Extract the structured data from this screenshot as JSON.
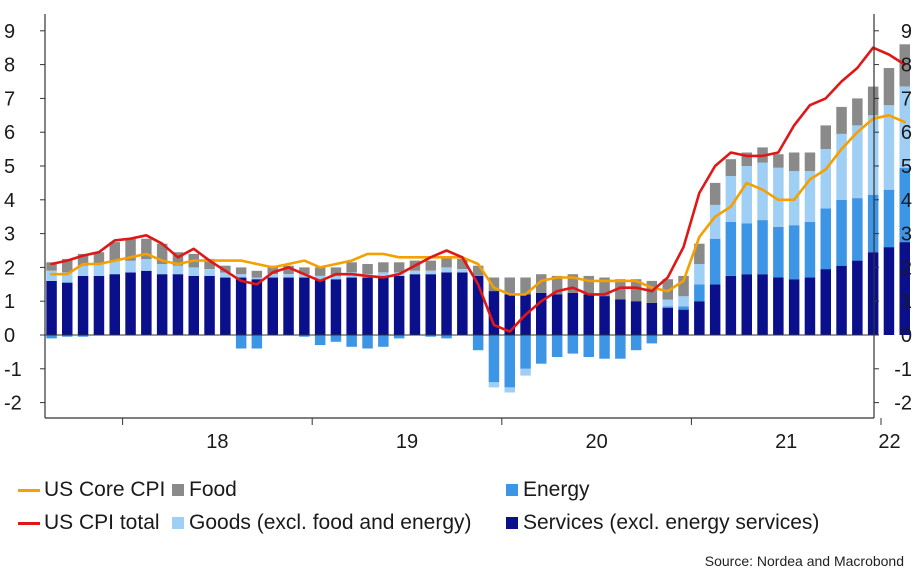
{
  "chart_data": {
    "type": "bar",
    "title": "",
    "xlabel": "",
    "ylabel": "",
    "ylim": [
      -2.5,
      9.5
    ],
    "yticks": [
      "-2",
      "-1",
      "0",
      "1",
      "2",
      "3",
      "4",
      "5",
      "6",
      "7",
      "8",
      "9"
    ],
    "ytick_values": [
      -2,
      -1,
      0,
      1,
      2,
      3,
      4,
      5,
      6,
      7,
      8,
      9
    ],
    "x_year_labels": [
      "18",
      "19",
      "20",
      "21",
      "22"
    ],
    "colors": {
      "services": "#0a0f8c",
      "energy": "#3d95e6",
      "goods": "#9fcff5",
      "food": "#8a8a8a",
      "core": "#f5a000",
      "total": "#e01717"
    },
    "stack_series": [
      {
        "name": "Services (excl. energy services)",
        "key": "services",
        "values": [
          1.6,
          1.55,
          1.75,
          1.75,
          1.8,
          1.85,
          1.9,
          1.8,
          1.8,
          1.75,
          1.75,
          1.7,
          1.7,
          1.65,
          1.7,
          1.7,
          1.7,
          1.65,
          1.65,
          1.7,
          1.7,
          1.75,
          1.75,
          1.8,
          1.8,
          1.85,
          1.85,
          1.75,
          1.3,
          1.2,
          1.2,
          1.25,
          1.2,
          1.25,
          1.2,
          1.15,
          1.05,
          1.0,
          0.95,
          0.8,
          0.75,
          1.0,
          1.5,
          1.75,
          1.8,
          1.8,
          1.7,
          1.65,
          1.7,
          1.95,
          2.05,
          2.2,
          2.45,
          2.6,
          2.75
        ]
      },
      {
        "name": "Energy",
        "key": "energy",
        "values": [
          -0.1,
          -0.05,
          -0.05,
          0,
          0,
          0,
          0,
          0,
          0,
          0,
          0,
          0,
          -0.4,
          -0.4,
          0,
          0,
          -0.05,
          -0.3,
          -0.2,
          -0.35,
          -0.4,
          -0.35,
          -0.1,
          0,
          -0.05,
          -0.1,
          0,
          -0.45,
          -1.4,
          -1.55,
          -1.0,
          -0.85,
          -0.65,
          -0.55,
          -0.65,
          -0.7,
          -0.7,
          -0.45,
          -0.25,
          0.05,
          0.1,
          0.5,
          1.35,
          1.6,
          1.5,
          1.6,
          1.5,
          1.6,
          1.65,
          1.8,
          1.95,
          1.85,
          1.7,
          1.7,
          2.2
        ]
      },
      {
        "name": "Goods (excl. food and energy)",
        "key": "goods",
        "values": [
          0.3,
          0.3,
          0.3,
          0.35,
          0.4,
          0.35,
          0.35,
          0.3,
          0.25,
          0.25,
          0.2,
          0.15,
          0.1,
          0.05,
          0.1,
          0.1,
          0.1,
          0.1,
          0.1,
          0.15,
          0.1,
          0.1,
          0.1,
          0.1,
          0.1,
          0.15,
          0.1,
          0.0,
          -0.15,
          -0.15,
          -0.2,
          0.0,
          0.0,
          0.0,
          0.0,
          0.0,
          0.0,
          0.0,
          0.0,
          0.2,
          0.3,
          0.6,
          1.0,
          1.35,
          1.7,
          1.7,
          1.75,
          1.6,
          1.5,
          1.75,
          1.95,
          2.15,
          2.35,
          2.5,
          2.4
        ]
      },
      {
        "name": "Food",
        "key": "food",
        "values": [
          0.25,
          0.4,
          0.35,
          0.35,
          0.55,
          0.65,
          0.6,
          0.6,
          0.4,
          0.4,
          0.3,
          0.2,
          0.2,
          0.2,
          0.25,
          0.25,
          0.2,
          0.25,
          0.25,
          0.3,
          0.3,
          0.3,
          0.3,
          0.3,
          0.3,
          0.3,
          0.3,
          0.3,
          0.4,
          0.5,
          0.5,
          0.55,
          0.55,
          0.55,
          0.55,
          0.55,
          0.6,
          0.65,
          0.65,
          0.6,
          0.6,
          0.6,
          0.65,
          0.5,
          0.4,
          0.45,
          0.4,
          0.55,
          0.55,
          0.7,
          0.8,
          0.8,
          0.85,
          1.1,
          1.25
        ]
      }
    ],
    "line_series": [
      {
        "name": "US Core CPI",
        "key": "core",
        "values": [
          1.8,
          1.8,
          2.1,
          2.1,
          2.2,
          2.3,
          2.4,
          2.2,
          2.1,
          2.2,
          2.2,
          2.2,
          2.2,
          2.1,
          2.0,
          2.1,
          2.2,
          2.0,
          2.1,
          2.2,
          2.4,
          2.4,
          2.3,
          2.3,
          2.3,
          2.3,
          2.3,
          2.1,
          1.4,
          1.2,
          1.2,
          1.6,
          1.7,
          1.7,
          1.6,
          1.6,
          1.6,
          1.6,
          1.4,
          1.3,
          1.6,
          2.9,
          3.5,
          3.8,
          4.5,
          4.3,
          4.0,
          4.0,
          4.6,
          4.9,
          5.5,
          6.0,
          6.4,
          6.5,
          6.3
        ]
      },
      {
        "name": "US CPI total",
        "key": "total",
        "values": [
          2.1,
          2.2,
          2.35,
          2.45,
          2.8,
          2.85,
          2.95,
          2.7,
          2.3,
          2.55,
          2.2,
          1.9,
          1.6,
          1.5,
          1.85,
          2.0,
          1.8,
          1.6,
          1.8,
          1.8,
          1.75,
          1.7,
          1.8,
          2.05,
          2.3,
          2.5,
          2.3,
          1.5,
          0.3,
          0.1,
          0.6,
          1.0,
          1.3,
          1.4,
          1.2,
          1.2,
          1.4,
          1.4,
          1.3,
          1.7,
          2.6,
          4.2,
          5.0,
          5.4,
          5.3,
          5.3,
          5.4,
          6.2,
          6.8,
          7.0,
          7.5,
          7.9,
          8.5,
          8.3,
          8.0
        ]
      }
    ],
    "legend": {
      "core": "US Core CPI",
      "total": "US CPI total",
      "food": "Food",
      "goods": "Goods (excl. food and energy)",
      "energy": "Energy",
      "services": "Services (excl. energy services)"
    }
  },
  "source": "Source: Nordea and Macrobond"
}
